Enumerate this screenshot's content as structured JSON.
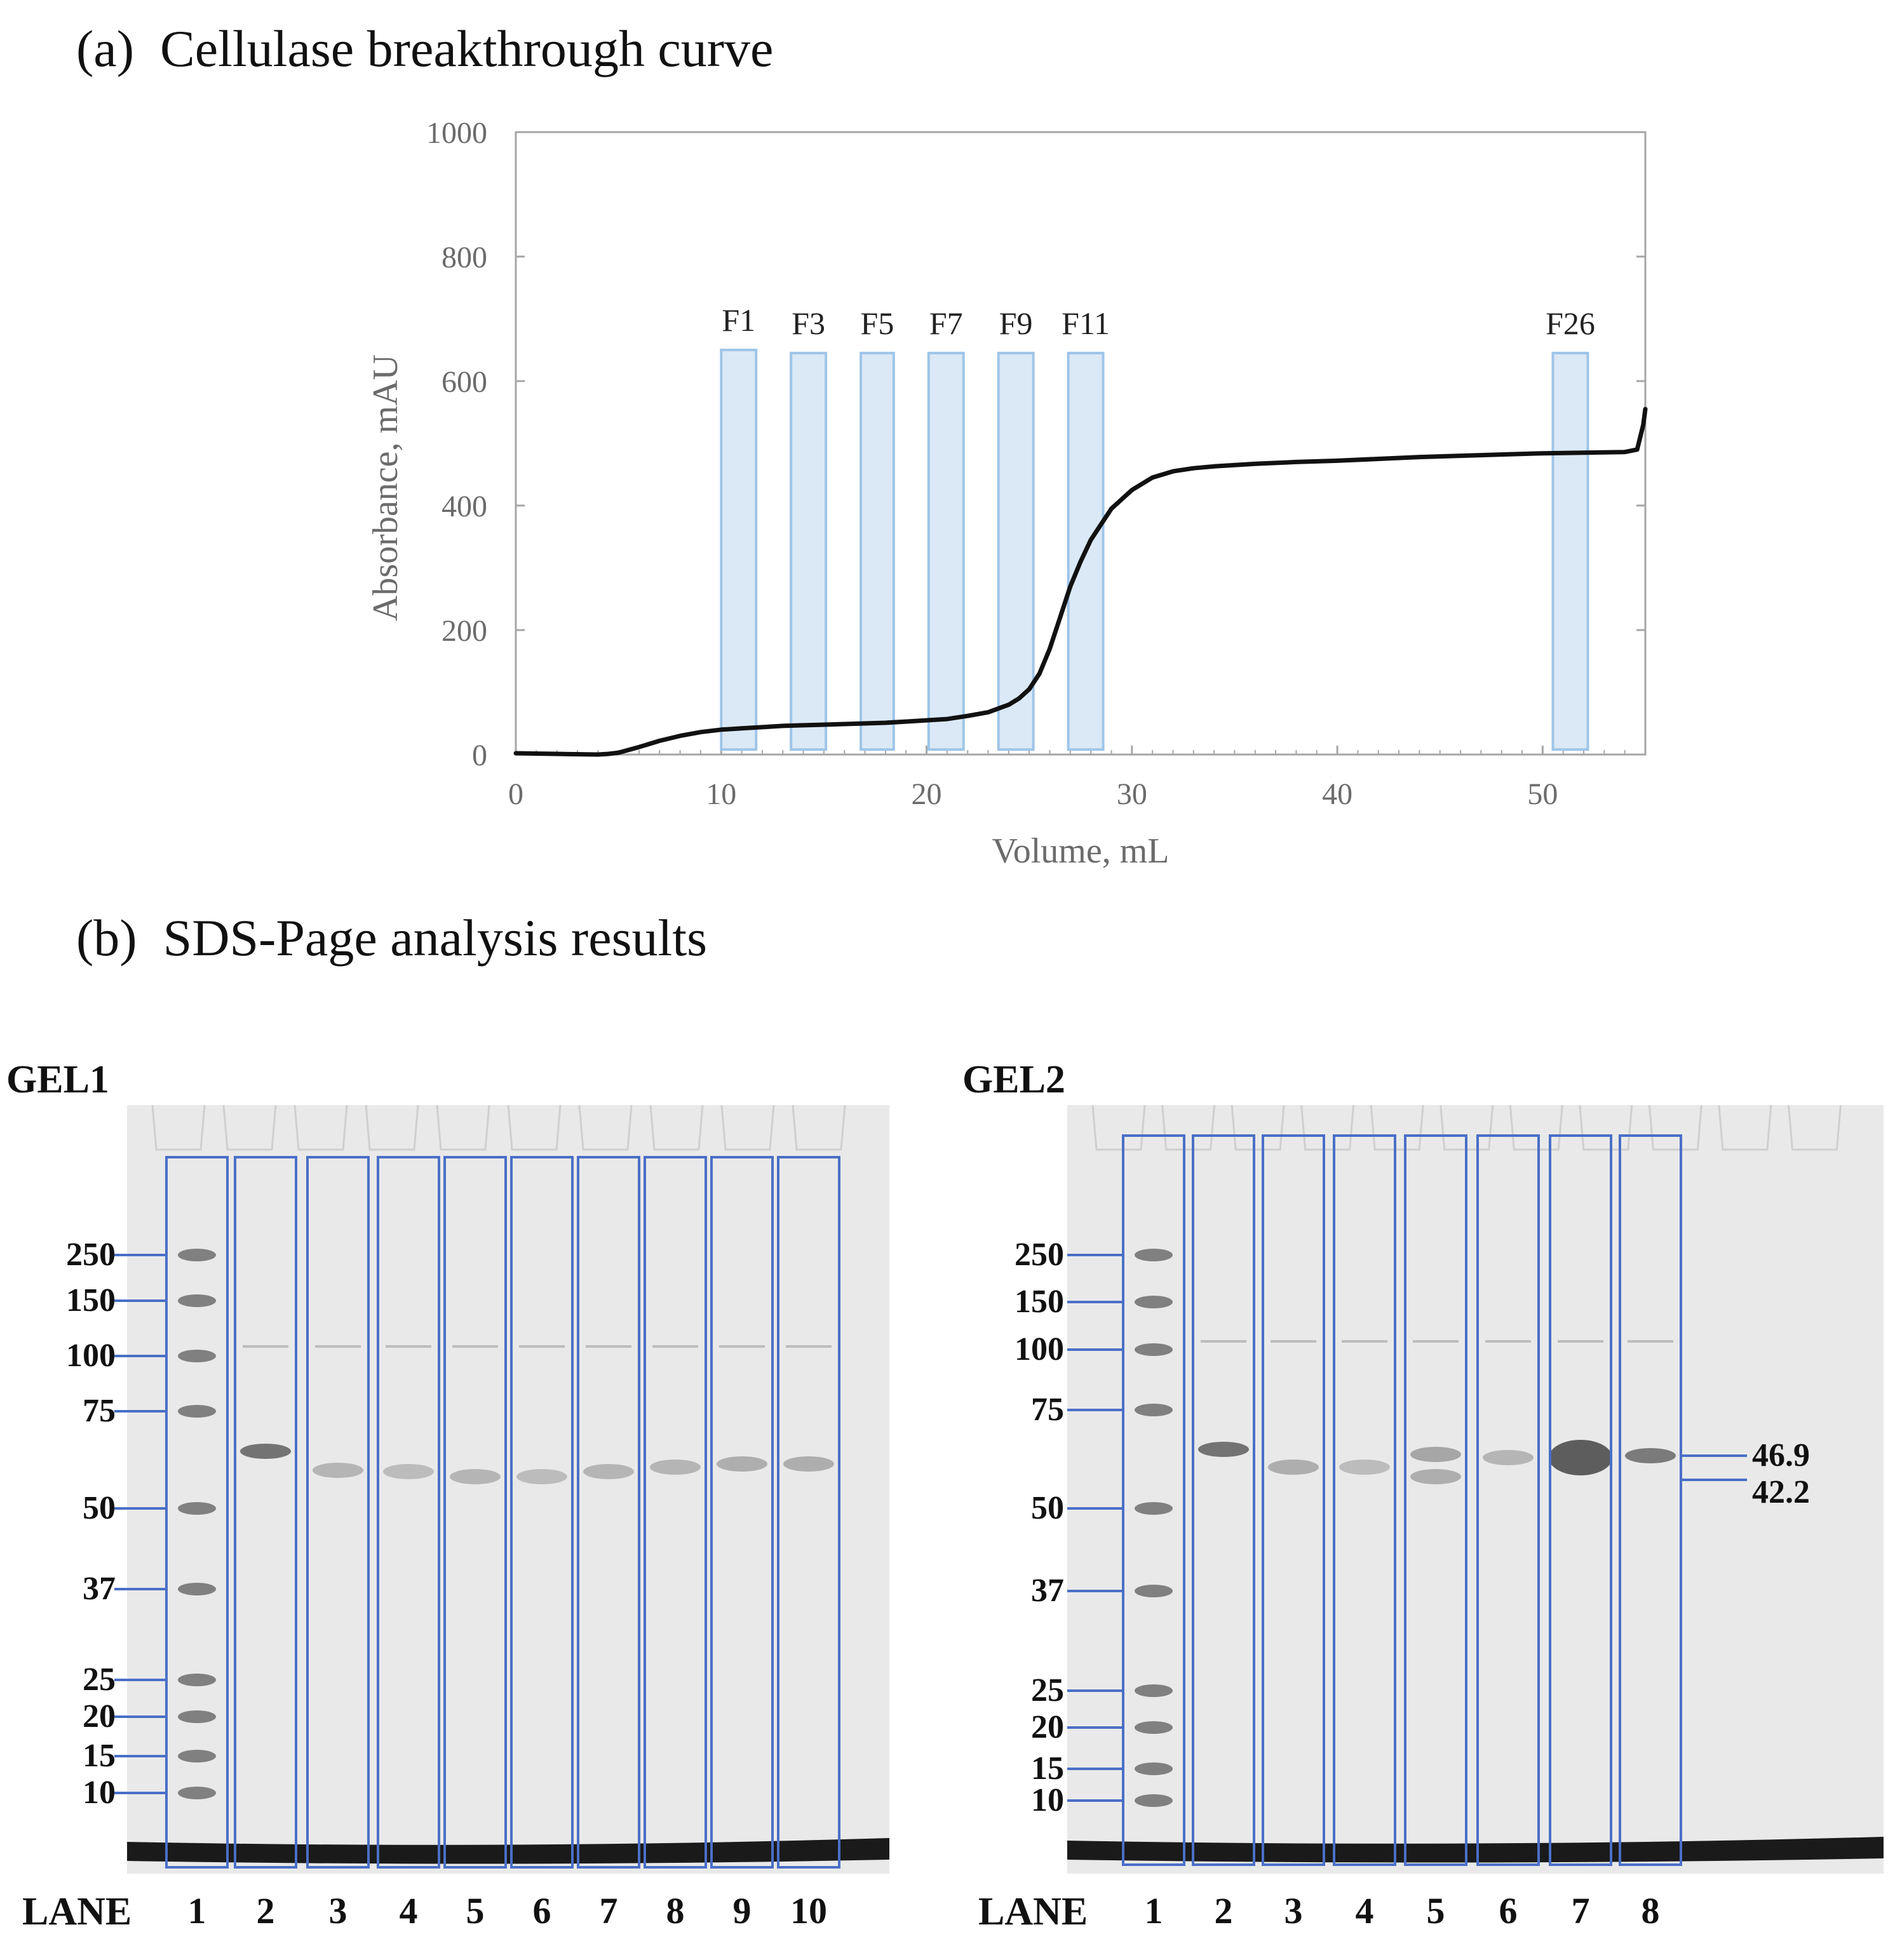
{
  "panel_a": {
    "label": "(a)",
    "title": "Cellulase breakthrough curve"
  },
  "panel_b": {
    "label": "(b)",
    "title": "SDS-Page analysis results"
  },
  "chart_data": {
    "type": "line",
    "title": "Cellulase breakthrough curve",
    "xlabel": "Volume, mL",
    "ylabel": "Absorbance, mAU",
    "xlim": [
      0,
      55
    ],
    "ylim": [
      0,
      1000
    ],
    "xticks": [
      0,
      10,
      20,
      30,
      40,
      50
    ],
    "yticks": [
      0,
      200,
      400,
      600,
      800,
      1000
    ],
    "grid": false,
    "series": [
      {
        "name": "Absorbance",
        "color": "#111111",
        "x": [
          0,
          2,
          4,
          4.5,
          5,
          6,
          7,
          8,
          9,
          10,
          11,
          12,
          13,
          14,
          15,
          16,
          17,
          18,
          19,
          20,
          21,
          22,
          23,
          24,
          24.5,
          25,
          25.5,
          26,
          26.5,
          27,
          27.5,
          28,
          28.5,
          29,
          29.5,
          30,
          31,
          32,
          33,
          34,
          35,
          36,
          38,
          40,
          42,
          44,
          46,
          48,
          50,
          52,
          54,
          54.6,
          54.9,
          55
        ],
        "y": [
          2,
          1,
          0,
          1,
          3,
          12,
          22,
          30,
          36,
          40,
          42,
          44,
          46,
          47,
          48,
          49,
          50,
          51,
          53,
          55,
          57,
          62,
          68,
          80,
          90,
          105,
          130,
          170,
          220,
          270,
          310,
          345,
          370,
          395,
          410,
          425,
          445,
          455,
          460,
          463,
          465,
          467,
          470,
          472,
          475,
          478,
          480,
          482,
          484,
          485,
          486,
          490,
          530,
          555
        ]
      }
    ],
    "fractions": [
      {
        "label": "F1",
        "start": 10.0,
        "end": 11.7,
        "top": 650
      },
      {
        "label": "F3",
        "start": 13.4,
        "end": 15.1,
        "top": 645
      },
      {
        "label": "F5",
        "start": 16.8,
        "end": 18.4,
        "top": 645
      },
      {
        "label": "F7",
        "start": 20.1,
        "end": 21.8,
        "top": 645
      },
      {
        "label": "F9",
        "start": 23.5,
        "end": 25.2,
        "top": 645
      },
      {
        "label": "F11",
        "start": 26.9,
        "end": 28.6,
        "top": 645
      },
      {
        "label": "F26",
        "start": 50.5,
        "end": 52.2,
        "top": 645
      }
    ],
    "fraction_color": "#cfe2f3",
    "fraction_border": "#9fc5e8"
  },
  "gel1": {
    "name": "GEL1",
    "lane_label": "LANE",
    "lanes": [
      "1",
      "2",
      "3",
      "4",
      "5",
      "6",
      "7",
      "8",
      "9",
      "10"
    ],
    "markers": [
      "250",
      "150",
      "100",
      "75",
      "50",
      "37",
      "25",
      "20",
      "15",
      "10"
    ]
  },
  "gel2": {
    "name": "GEL2",
    "lane_label": "LANE",
    "lanes": [
      "1",
      "2",
      "3",
      "4",
      "5",
      "6",
      "7",
      "8"
    ],
    "markers": [
      "250",
      "150",
      "100",
      "75",
      "50",
      "37",
      "25",
      "20",
      "15",
      "10"
    ],
    "band_labels": [
      "46.9",
      "42.2"
    ]
  },
  "lane_box_color": "#4a6fc7"
}
